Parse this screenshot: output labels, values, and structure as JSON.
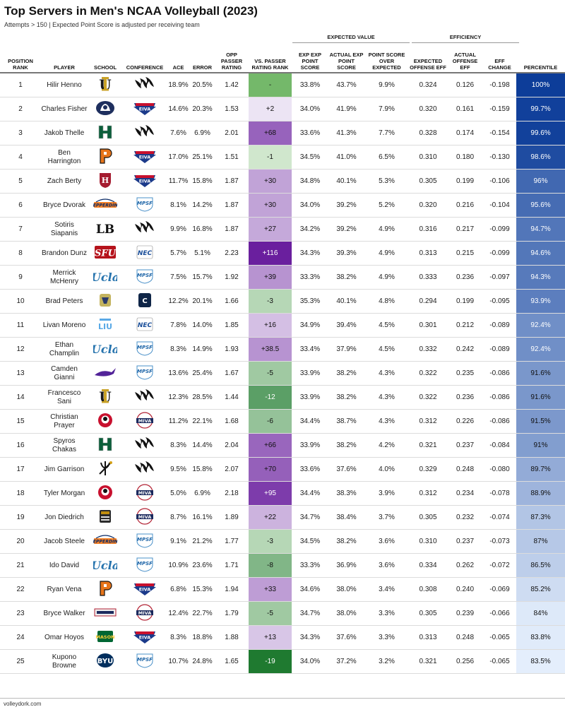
{
  "title": "Top Servers in Men's NCAA Volleyball (2023)",
  "subtitle": "Attempts > 150 | Expected Point Score is adjusted per receiving team",
  "footer": "volleydork.com",
  "groups": {
    "expected_value": "EXPECTED VALUE",
    "efficiency": "EFFICIENCY"
  },
  "headers": [
    "POSITION RANK",
    "PLAYER",
    "SCHOOL",
    "CONFERENCE",
    "ACE",
    "ERROR",
    "OPP PASSER RATING",
    "VS. PASSER RATING RANK",
    "EXP EXP POINT SCORE",
    "ACTUAL EXP POINT SCORE",
    "POINT SCORE OVER EXPECTED",
    "EXPECTED OFFENSE EFF",
    "ACTUAL OFFENSE EFF",
    "EFF CHANGE",
    "PERCENTILE"
  ],
  "colors": {
    "rank_positive": "#6a1f9e",
    "rank_negative": "#1f7a30",
    "percentile_high": "#0d3d99",
    "percentile_low": "#e4eefc"
  },
  "chart_data": {
    "type": "table",
    "title": "Top Servers in Men's NCAA Volleyball (2023)",
    "rows": [
      {
        "rank": "1",
        "player": "Hilir Henno",
        "school": "UC Irvine",
        "school_icon": "uci-anteater-logo",
        "conference": "Big West",
        "conf_icon": "bigwest-logo",
        "ace": "18.9%",
        "error": "20.5%",
        "opp": "1.42",
        "vsrank": "-",
        "vsnum": 0,
        "xexp": "33.8%",
        "actexp": "43.7%",
        "psoe": "9.9%",
        "xeff": "0.324",
        "aeff": "0.126",
        "effchg": "-0.198",
        "pct": "100%",
        "pctnum": 100
      },
      {
        "rank": "2",
        "player": "Charles Fisher",
        "school": "Penn State",
        "school_icon": "penn-state-logo",
        "conference": "EIVA",
        "conf_icon": "eiva-logo",
        "ace": "14.6%",
        "error": "20.3%",
        "opp": "1.53",
        "vsrank": "+2",
        "vsnum": 2,
        "xexp": "34.0%",
        "actexp": "41.9%",
        "psoe": "7.9%",
        "xeff": "0.320",
        "aeff": "0.161",
        "effchg": "-0.159",
        "pct": "99.7%",
        "pctnum": 99.7
      },
      {
        "rank": "3",
        "player": "Jakob Thelle",
        "school": "Hawaii",
        "school_icon": "hawaii-h-logo",
        "conference": "Big West",
        "conf_icon": "bigwest-logo",
        "ace": "7.6%",
        "error": "6.9%",
        "opp": "2.01",
        "vsrank": "+68",
        "vsnum": 68,
        "xexp": "33.6%",
        "actexp": "41.3%",
        "psoe": "7.7%",
        "xeff": "0.328",
        "aeff": "0.174",
        "effchg": "-0.154",
        "pct": "99.6%",
        "pctnum": 99.6
      },
      {
        "rank": "4",
        "player": "Ben Harrington",
        "school": "Princeton",
        "school_icon": "princeton-p-logo",
        "conference": "EIVA",
        "conf_icon": "eiva-logo",
        "ace": "17.0%",
        "error": "25.1%",
        "opp": "1.51",
        "vsrank": "-1",
        "vsnum": -1,
        "xexp": "34.5%",
        "actexp": "41.0%",
        "psoe": "6.5%",
        "xeff": "0.310",
        "aeff": "0.180",
        "effchg": "-0.130",
        "pct": "98.6%",
        "pctnum": 98.6
      },
      {
        "rank": "5",
        "player": "Zach Berty",
        "school": "Harvard",
        "school_icon": "harvard-h-logo",
        "conference": "EIVA",
        "conf_icon": "eiva-logo",
        "ace": "11.7%",
        "error": "15.8%",
        "opp": "1.87",
        "vsrank": "+30",
        "vsnum": 30,
        "xexp": "34.8%",
        "actexp": "40.1%",
        "psoe": "5.3%",
        "xeff": "0.305",
        "aeff": "0.199",
        "effchg": "-0.106",
        "pct": "96%",
        "pctnum": 96
      },
      {
        "rank": "6",
        "player": "Bryce Dvorak",
        "school": "Pepperdine",
        "school_icon": "pepperdine-logo",
        "conference": "MPSF",
        "conf_icon": "mpsf-logo",
        "ace": "8.1%",
        "error": "14.2%",
        "opp": "1.87",
        "vsrank": "+30",
        "vsnum": 30,
        "xexp": "34.0%",
        "actexp": "39.2%",
        "psoe": "5.2%",
        "xeff": "0.320",
        "aeff": "0.216",
        "effchg": "-0.104",
        "pct": "95.6%",
        "pctnum": 95.6
      },
      {
        "rank": "7",
        "player": "Sotiris Siapanis",
        "school": "Long Beach State",
        "school_icon": "lb-logo",
        "conference": "Big West",
        "conf_icon": "bigwest-logo",
        "ace": "9.9%",
        "error": "16.8%",
        "opp": "1.87",
        "vsrank": "+27",
        "vsnum": 27,
        "xexp": "34.2%",
        "actexp": "39.2%",
        "psoe": "4.9%",
        "xeff": "0.316",
        "aeff": "0.217",
        "effchg": "-0.099",
        "pct": "94.7%",
        "pctnum": 94.7
      },
      {
        "rank": "8",
        "player": "Brandon Dunz",
        "school": "St. Francis",
        "school_icon": "sfu-logo",
        "conference": "NEC",
        "conf_icon": "nec-logo",
        "ace": "5.7%",
        "error": "5.1%",
        "opp": "2.23",
        "vsrank": "+116",
        "vsnum": 116,
        "xexp": "34.3%",
        "actexp": "39.3%",
        "psoe": "4.9%",
        "xeff": "0.313",
        "aeff": "0.215",
        "effchg": "-0.099",
        "pct": "94.6%",
        "pctnum": 94.6
      },
      {
        "rank": "9",
        "player": "Merrick McHenry",
        "school": "UCLA",
        "school_icon": "ucla-logo",
        "conference": "MPSF",
        "conf_icon": "mpsf-logo",
        "ace": "7.5%",
        "error": "15.7%",
        "opp": "1.92",
        "vsrank": "+39",
        "vsnum": 39,
        "xexp": "33.3%",
        "actexp": "38.2%",
        "psoe": "4.9%",
        "xeff": "0.333",
        "aeff": "0.236",
        "effchg": "-0.097",
        "pct": "94.3%",
        "pctnum": 94.3
      },
      {
        "rank": "10",
        "player": "Brad Peters",
        "school": "Lincoln Memorial",
        "school_icon": "railsplitter-logo",
        "conference": "Conference Carolinas",
        "conf_icon": "cc-logo",
        "ace": "12.2%",
        "error": "20.1%",
        "opp": "1.66",
        "vsrank": "-3",
        "vsnum": -3,
        "xexp": "35.3%",
        "actexp": "40.1%",
        "psoe": "4.8%",
        "xeff": "0.294",
        "aeff": "0.199",
        "effchg": "-0.095",
        "pct": "93.9%",
        "pctnum": 93.9
      },
      {
        "rank": "11",
        "player": "Livan Moreno",
        "school": "LIU",
        "school_icon": "liu-logo",
        "conference": "NEC",
        "conf_icon": "nec-logo",
        "ace": "7.8%",
        "error": "14.0%",
        "opp": "1.85",
        "vsrank": "+16",
        "vsnum": 16,
        "xexp": "34.9%",
        "actexp": "39.4%",
        "psoe": "4.5%",
        "xeff": "0.301",
        "aeff": "0.212",
        "effchg": "-0.089",
        "pct": "92.4%",
        "pctnum": 92.4
      },
      {
        "rank": "12",
        "player": "Ethan Champlin",
        "school": "UCLA",
        "school_icon": "ucla-logo",
        "conference": "MPSF",
        "conf_icon": "mpsf-logo",
        "ace": "8.3%",
        "error": "14.9%",
        "opp": "1.93",
        "vsrank": "+38.5",
        "vsnum": 38.5,
        "xexp": "33.4%",
        "actexp": "37.9%",
        "psoe": "4.5%",
        "xeff": "0.332",
        "aeff": "0.242",
        "effchg": "-0.089",
        "pct": "92.4%",
        "pctnum": 92.4
      },
      {
        "rank": "13",
        "player": "Camden Gianni",
        "school": "Grand Canyon",
        "school_icon": "antelope-logo",
        "conference": "MPSF",
        "conf_icon": "mpsf-logo",
        "ace": "13.6%",
        "error": "25.4%",
        "opp": "1.67",
        "vsrank": "-5",
        "vsnum": -5,
        "xexp": "33.9%",
        "actexp": "38.2%",
        "psoe": "4.3%",
        "xeff": "0.322",
        "aeff": "0.235",
        "effchg": "-0.086",
        "pct": "91.6%",
        "pctnum": 91.6
      },
      {
        "rank": "14",
        "player": "Francesco Sani",
        "school": "UC Irvine",
        "school_icon": "uci-anteater-logo",
        "conference": "Big West",
        "conf_icon": "bigwest-logo",
        "ace": "12.3%",
        "error": "28.5%",
        "opp": "1.44",
        "vsrank": "-12",
        "vsnum": -12,
        "xexp": "33.9%",
        "actexp": "38.2%",
        "psoe": "4.3%",
        "xeff": "0.322",
        "aeff": "0.236",
        "effchg": "-0.086",
        "pct": "91.6%",
        "pctnum": 91.6
      },
      {
        "rank": "15",
        "player": "Christian Prayer",
        "school": "Lewis",
        "school_icon": "lewis-flyer-logo",
        "conference": "MIVA",
        "conf_icon": "miva-logo",
        "ace": "11.2%",
        "error": "22.1%",
        "opp": "1.68",
        "vsrank": "-6",
        "vsnum": -6,
        "xexp": "34.4%",
        "actexp": "38.7%",
        "psoe": "4.3%",
        "xeff": "0.312",
        "aeff": "0.226",
        "effchg": "-0.086",
        "pct": "91.5%",
        "pctnum": 91.5
      },
      {
        "rank": "16",
        "player": "Spyros Chakas",
        "school": "Hawaii",
        "school_icon": "hawaii-h-logo",
        "conference": "Big West",
        "conf_icon": "bigwest-logo",
        "ace": "8.3%",
        "error": "14.4%",
        "opp": "2.04",
        "vsrank": "+66",
        "vsnum": 66,
        "xexp": "33.9%",
        "actexp": "38.2%",
        "psoe": "4.2%",
        "xeff": "0.321",
        "aeff": "0.237",
        "effchg": "-0.084",
        "pct": "91%",
        "pctnum": 91
      },
      {
        "rank": "17",
        "player": "Jim Garrison",
        "school": "UC Santa Barbara",
        "school_icon": "trident-logo",
        "conference": "Big West",
        "conf_icon": "bigwest-logo",
        "ace": "9.5%",
        "error": "15.8%",
        "opp": "2.07",
        "vsrank": "+70",
        "vsnum": 70,
        "xexp": "33.6%",
        "actexp": "37.6%",
        "psoe": "4.0%",
        "xeff": "0.329",
        "aeff": "0.248",
        "effchg": "-0.080",
        "pct": "89.7%",
        "pctnum": 89.7
      },
      {
        "rank": "18",
        "player": "Tyler Morgan",
        "school": "Lewis",
        "school_icon": "lewis-flyer-logo",
        "conference": "MIVA",
        "conf_icon": "miva-logo",
        "ace": "5.0%",
        "error": "6.9%",
        "opp": "2.18",
        "vsrank": "+95",
        "vsnum": 95,
        "xexp": "34.4%",
        "actexp": "38.3%",
        "psoe": "3.9%",
        "xeff": "0.312",
        "aeff": "0.234",
        "effchg": "-0.078",
        "pct": "88.9%",
        "pctnum": 88.9
      },
      {
        "rank": "19",
        "player": "Jon Diedrich",
        "school": "Purdue Fort Wayne",
        "school_icon": "purdue-fw-logo",
        "conference": "MIVA",
        "conf_icon": "miva-logo",
        "ace": "8.7%",
        "error": "16.1%",
        "opp": "1.89",
        "vsrank": "+22",
        "vsnum": 22,
        "xexp": "34.7%",
        "actexp": "38.4%",
        "psoe": "3.7%",
        "xeff": "0.305",
        "aeff": "0.232",
        "effchg": "-0.074",
        "pct": "87.3%",
        "pctnum": 87.3
      },
      {
        "rank": "20",
        "player": "Jacob Steele",
        "school": "Pepperdine",
        "school_icon": "pepperdine-logo",
        "conference": "MPSF",
        "conf_icon": "mpsf-logo",
        "ace": "9.1%",
        "error": "21.2%",
        "opp": "1.77",
        "vsrank": "-3",
        "vsnum": -3,
        "xexp": "34.5%",
        "actexp": "38.2%",
        "psoe": "3.6%",
        "xeff": "0.310",
        "aeff": "0.237",
        "effchg": "-0.073",
        "pct": "87%",
        "pctnum": 87
      },
      {
        "rank": "21",
        "player": "Ido David",
        "school": "UCLA",
        "school_icon": "ucla-logo",
        "conference": "MPSF",
        "conf_icon": "mpsf-logo",
        "ace": "10.9%",
        "error": "23.6%",
        "opp": "1.71",
        "vsrank": "-8",
        "vsnum": -8,
        "xexp": "33.3%",
        "actexp": "36.9%",
        "psoe": "3.6%",
        "xeff": "0.334",
        "aeff": "0.262",
        "effchg": "-0.072",
        "pct": "86.5%",
        "pctnum": 86.5
      },
      {
        "rank": "22",
        "player": "Ryan Vena",
        "school": "Princeton",
        "school_icon": "princeton-p-logo",
        "conference": "EIVA",
        "conf_icon": "eiva-logo",
        "ace": "6.8%",
        "error": "15.3%",
        "opp": "1.94",
        "vsrank": "+33",
        "vsnum": 33,
        "xexp": "34.6%",
        "actexp": "38.0%",
        "psoe": "3.4%",
        "xeff": "0.308",
        "aeff": "0.240",
        "effchg": "-0.069",
        "pct": "85.2%",
        "pctnum": 85.2
      },
      {
        "rank": "23",
        "player": "Bryce Walker",
        "school": "Ball State",
        "school_icon": "miva-school-logo",
        "conference": "MIVA",
        "conf_icon": "miva-logo",
        "ace": "12.4%",
        "error": "22.7%",
        "opp": "1.79",
        "vsrank": "-5",
        "vsnum": -5,
        "xexp": "34.7%",
        "actexp": "38.0%",
        "psoe": "3.3%",
        "xeff": "0.305",
        "aeff": "0.239",
        "effchg": "-0.066",
        "pct": "84%",
        "pctnum": 84
      },
      {
        "rank": "24",
        "player": "Omar Hoyos",
        "school": "George Mason",
        "school_icon": "mason-logo",
        "conference": "EIVA",
        "conf_icon": "eiva-logo",
        "ace": "8.3%",
        "error": "18.8%",
        "opp": "1.88",
        "vsrank": "+13",
        "vsnum": 13,
        "xexp": "34.3%",
        "actexp": "37.6%",
        "psoe": "3.3%",
        "xeff": "0.313",
        "aeff": "0.248",
        "effchg": "-0.065",
        "pct": "83.8%",
        "pctnum": 83.8
      },
      {
        "rank": "25",
        "player": "Kupono Browne",
        "school": "BYU",
        "school_icon": "byu-logo",
        "conference": "MPSF",
        "conf_icon": "mpsf-logo",
        "ace": "10.7%",
        "error": "24.8%",
        "opp": "1.65",
        "vsrank": "-19",
        "vsnum": -19,
        "xexp": "34.0%",
        "actexp": "37.2%",
        "psoe": "3.2%",
        "xeff": "0.321",
        "aeff": "0.256",
        "effchg": "-0.065",
        "pct": "83.5%",
        "pctnum": 83.5
      }
    ]
  }
}
